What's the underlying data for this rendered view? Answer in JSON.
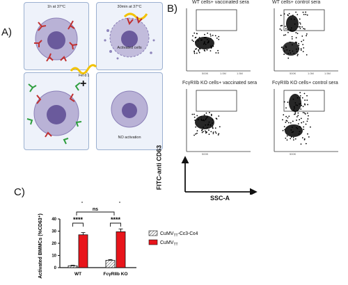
{
  "panels": {
    "a": {
      "letter": "A)",
      "top_left_label": "1h at 37°C",
      "top_right_label": "30min at 37°C",
      "activated_label": "Activated cells",
      "bottom_right_label": "NO activation",
      "allergen_label": "Fel d 1",
      "plus_sign": "+"
    },
    "b": {
      "letter": "B)",
      "plots": [
        {
          "title": "WT cells+ vaccinated sera"
        },
        {
          "title": "WT cells+ control sera"
        },
        {
          "title": "FcγRIIb KO cells+ vaccinated sera"
        },
        {
          "title": "FcγRIIb KO cells+ control sera"
        }
      ],
      "y_axis_label": "FITC-anti CD63",
      "x_axis_label": "SSC-A",
      "x_ticks": [
        "500K",
        "1.0M",
        "1.5M"
      ]
    },
    "c": {
      "letter": "C)",
      "significance": [
        "****",
        "****",
        "ns",
        "ns"
      ]
    }
  },
  "chart_data": {
    "type": "bar",
    "categories": [
      "WT",
      "FcγRIIb KO"
    ],
    "ylabel": "Activated BMMCs (%CD63⁺)",
    "ylim": [
      0,
      40
    ],
    "yticks": [
      0,
      10,
      20,
      30,
      40
    ],
    "legend_placement": "right",
    "series": [
      {
        "name": "CuMVTT-Cε3-Cε4",
        "name_main": "CuMV",
        "name_sub": "TT",
        "name_rest": "-Cε3-Cε4",
        "values": [
          1.5,
          6
        ],
        "errors": [
          0.5,
          0.6
        ],
        "color": "#f2f2f2",
        "pattern": "hatched"
      },
      {
        "name": "CuMVTT",
        "name_main": "CuMV",
        "name_sub": "TT",
        "name_rest": "",
        "values": [
          27,
          29.5
        ],
        "errors": [
          1.8,
          2.3
        ],
        "color": "#e8151b",
        "pattern": "solid"
      }
    ]
  },
  "colors": {
    "bar_red": "#e8151b",
    "box_fill": "#eef2fa",
    "box_border": "#9bb0d0",
    "cell_outer": "#a8a0c8",
    "cell_nucleus": "#6a5a9c",
    "allergen_yellow": "#f2c200"
  }
}
